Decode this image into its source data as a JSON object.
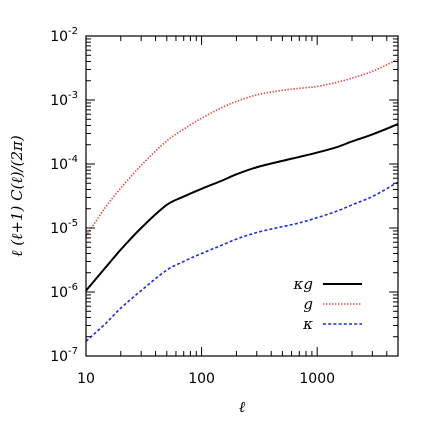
{
  "chart_data": {
    "type": "line",
    "title": "",
    "xlabel": "ℓ",
    "ylabel": "ℓ (ℓ+1)  C(ℓ)/(2π)",
    "xscale": "log",
    "yscale": "log",
    "xlim": [
      10,
      5000
    ],
    "ylim": [
      1e-07,
      0.01
    ],
    "grid": false,
    "legend_position": "bottom-right",
    "x_ticks": [
      {
        "value": 10,
        "label": "10"
      },
      {
        "value": 100,
        "label": "100"
      },
      {
        "value": 1000,
        "label": "1000"
      }
    ],
    "y_ticks": [
      {
        "value": 1e-07,
        "base": "10",
        "exp": "-7"
      },
      {
        "value": 1e-06,
        "base": "10",
        "exp": "-6"
      },
      {
        "value": 1e-05,
        "base": "10",
        "exp": "-5"
      },
      {
        "value": 0.0001,
        "base": "10",
        "exp": "-4"
      },
      {
        "value": 0.001,
        "base": "10",
        "exp": "-3"
      },
      {
        "value": 0.01,
        "base": "10",
        "exp": "-2"
      }
    ],
    "x": [
      10,
      15,
      20,
      30,
      50,
      70,
      100,
      150,
      200,
      300,
      500,
      700,
      1000,
      1500,
      2000,
      3000,
      5000
    ],
    "series": [
      {
        "name": "κg",
        "color": "#000000",
        "style": "solid",
        "values": [
          1.05e-06,
          2.5e-06,
          4.6e-06,
          1e-05,
          2.3e-05,
          3.1e-05,
          4.1e-05,
          5.5e-05,
          6.9e-05,
          8.9e-05,
          0.000112,
          0.000129,
          0.000151,
          0.000185,
          0.000225,
          0.00029,
          0.00042
        ]
      },
      {
        "name": "g",
        "color": "#e8433a",
        "style": "dotted",
        "values": [
          7.5e-06,
          2.2e-05,
          4.2e-05,
          9.5e-05,
          0.00023,
          0.00035,
          0.00052,
          0.00076,
          0.00095,
          0.0012,
          0.00142,
          0.00152,
          0.00163,
          0.0019,
          0.0022,
          0.0028,
          0.0043
        ]
      },
      {
        "name": "κ",
        "color": "#1a2bd8",
        "style": "dashed",
        "values": [
          1.7e-07,
          3.3e-07,
          5.6e-07,
          1.05e-06,
          2.2e-06,
          3e-06,
          4e-06,
          5.4e-06,
          6.7e-06,
          8.5e-06,
          1.05e-05,
          1.2e-05,
          1.45e-05,
          1.85e-05,
          2.3e-05,
          3.1e-05,
          5.2e-05
        ]
      }
    ]
  }
}
